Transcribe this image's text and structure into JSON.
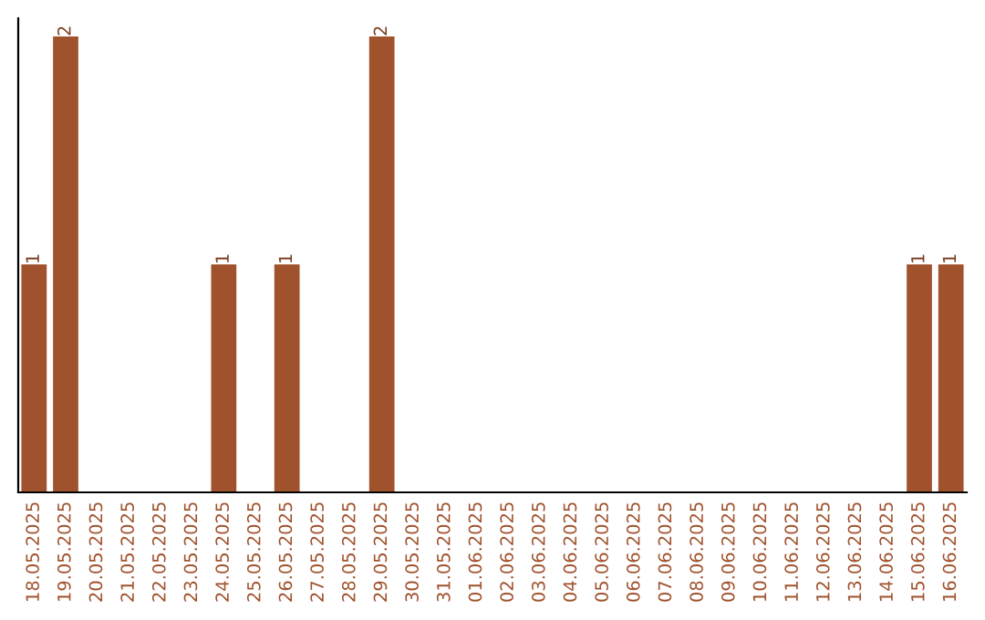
{
  "chart_data": {
    "type": "bar",
    "categories": [
      "18.05.2025",
      "19.05.2025",
      "20.05.2025",
      "21.05.2025",
      "22.05.2025",
      "23.05.2025",
      "24.05.2025",
      "25.05.2025",
      "26.05.2025",
      "27.05.2025",
      "28.05.2025",
      "29.05.2025",
      "30.05.2025",
      "31.05.2025",
      "01.06.2025",
      "02.06.2025",
      "03.06.2025",
      "04.06.2025",
      "05.06.2025",
      "06.06.2025",
      "07.06.2025",
      "08.06.2025",
      "09.06.2025",
      "10.06.2025",
      "11.06.2025",
      "12.06.2025",
      "13.06.2025",
      "14.06.2025",
      "15.06.2025",
      "16.06.2025"
    ],
    "values": [
      1,
      2,
      0,
      0,
      0,
      0,
      1,
      0,
      1,
      0,
      0,
      2,
      0,
      0,
      0,
      0,
      0,
      0,
      0,
      0,
      0,
      0,
      0,
      0,
      0,
      0,
      0,
      0,
      1,
      1
    ],
    "value_labels": [
      "1",
      "2",
      null,
      null,
      null,
      null,
      "1",
      null,
      "1",
      null,
      null,
      "2",
      null,
      null,
      null,
      null,
      null,
      null,
      null,
      null,
      null,
      null,
      null,
      null,
      null,
      null,
      null,
      null,
      "1",
      "1"
    ],
    "color": "#a0522d",
    "tick_labels": "x",
    "grid": false,
    "legend": false
  }
}
